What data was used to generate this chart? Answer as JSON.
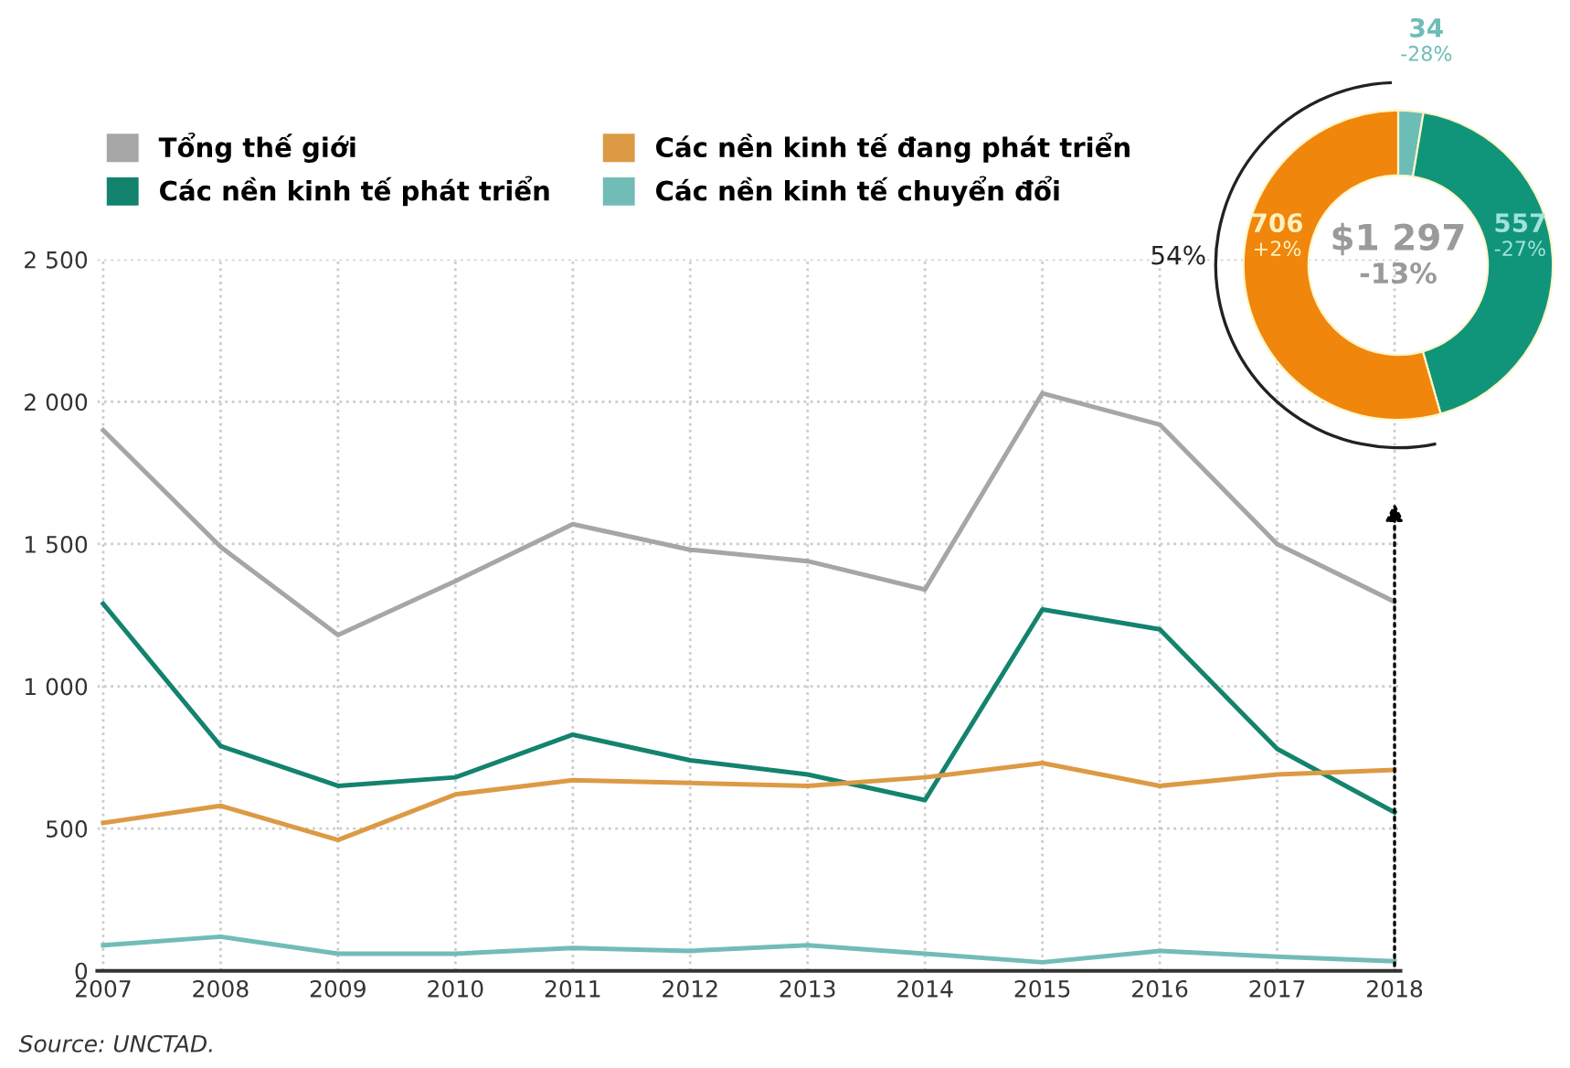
{
  "chart_data": [
    {
      "type": "line",
      "categories": [
        "2007",
        "2008",
        "2009",
        "2010",
        "2011",
        "2012",
        "2013",
        "2014",
        "2015",
        "2016",
        "2017",
        "2018"
      ],
      "series": [
        {
          "name": "Tổng thế giới",
          "color": "#a6a6a6",
          "values": [
            1900,
            1490,
            1180,
            1370,
            1570,
            1480,
            1440,
            1340,
            2030,
            1920,
            1500,
            1297
          ]
        },
        {
          "name": "Các nền kinh tế phát triển",
          "color": "#13836e",
          "values": [
            1290,
            790,
            650,
            680,
            830,
            740,
            690,
            600,
            1270,
            1200,
            780,
            557
          ]
        },
        {
          "name": "Các nền kinh tế đang phát triển",
          "color": "#dc9a45",
          "values": [
            520,
            580,
            460,
            620,
            670,
            660,
            650,
            680,
            730,
            650,
            690,
            706
          ]
        },
        {
          "name": "Các nền kinh tế chuyển đổi",
          "color": "#72bcb8",
          "values": [
            90,
            120,
            60,
            60,
            80,
            70,
            90,
            60,
            30,
            70,
            50,
            34
          ]
        }
      ],
      "ylim": [
        0,
        2500
      ],
      "yticks": [
        {
          "value": 0,
          "label": "0"
        },
        {
          "value": 500,
          "label": "500"
        },
        {
          "value": 1000,
          "label": "1 000"
        },
        {
          "value": 1500,
          "label": "1 500"
        },
        {
          "value": 2000,
          "label": "2 000"
        },
        {
          "value": 2500,
          "label": "2 500"
        }
      ],
      "grid": true,
      "legend": "top",
      "line_style": "solid",
      "marker": "none",
      "annotations": [
        "Source: UNCTAD."
      ]
    },
    {
      "type": "donut",
      "categories": [
        null,
        null,
        null
      ],
      "values": [
        34,
        557,
        706
      ],
      "colors": [
        "#6dbdb7",
        "#11957a",
        "#f0860c"
      ],
      "data_labels": true,
      "annotations": [
        "$1 297",
        "-13%",
        "54%",
        "-28%",
        "-27%",
        "+2%"
      ]
    }
  ]
}
